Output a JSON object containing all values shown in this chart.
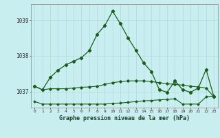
{
  "title": "Graphe pression niveau de la mer (hPa)",
  "background_color": "#c8eef0",
  "grid_color": "#b0d8dc",
  "line_color": "#1a5c1a",
  "x_labels": [
    "0",
    "1",
    "2",
    "3",
    "4",
    "5",
    "6",
    "7",
    "8",
    "9",
    "10",
    "11",
    "12",
    "13",
    "14",
    "15",
    "16",
    "17",
    "18",
    "19",
    "20",
    "21",
    "22",
    "23"
  ],
  "ylim": [
    1036.55,
    1039.45
  ],
  "yticks": [
    1037,
    1038,
    1039
  ],
  "line1_y": [
    1037.15,
    1037.05,
    1037.4,
    1037.6,
    1037.75,
    1037.85,
    1037.95,
    1038.15,
    1038.6,
    1038.85,
    1039.25,
    1038.9,
    1038.5,
    1038.15,
    1037.8,
    1037.55,
    1037.05,
    1036.98,
    1037.3,
    1037.05,
    1036.98,
    1037.1,
    1037.62,
    1036.85
  ],
  "line2_y": [
    1037.15,
    1037.05,
    1037.08,
    1037.08,
    1037.08,
    1037.1,
    1037.12,
    1037.13,
    1037.15,
    1037.2,
    1037.25,
    1037.28,
    1037.3,
    1037.3,
    1037.3,
    1037.28,
    1037.25,
    1037.22,
    1037.2,
    1037.18,
    1037.15,
    1037.13,
    1037.1,
    1036.85
  ],
  "line3_y": [
    1036.72,
    1036.65,
    1036.65,
    1036.65,
    1036.65,
    1036.65,
    1036.65,
    1036.65,
    1036.65,
    1036.65,
    1036.67,
    1036.68,
    1036.7,
    1036.72,
    1036.74,
    1036.75,
    1036.77,
    1036.78,
    1036.8,
    1036.65,
    1036.65,
    1036.65,
    1036.85,
    1036.88
  ]
}
